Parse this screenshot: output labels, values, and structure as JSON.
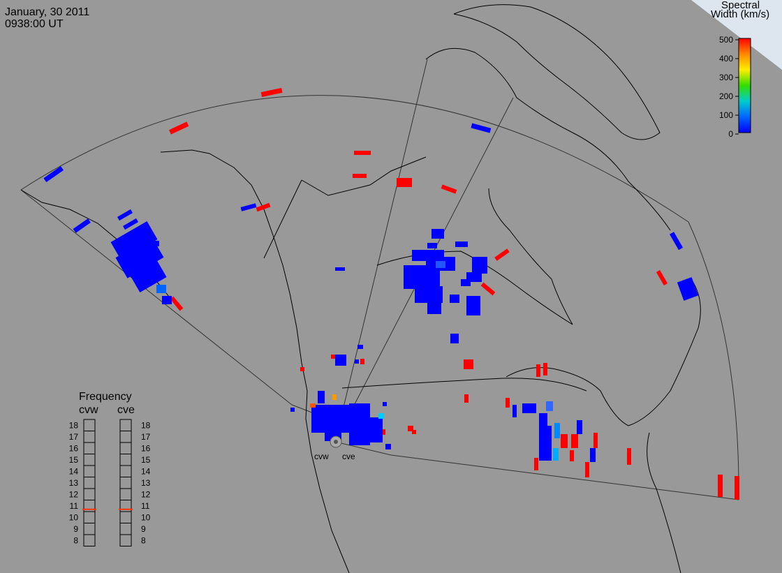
{
  "header": {
    "date": "January, 30 2011",
    "time": "0938:00 UT"
  },
  "colorbar": {
    "title_line1": "Spectral",
    "title_line2": "Width (km/s)",
    "ticks": [
      "500",
      "400",
      "300",
      "200",
      "100",
      "0"
    ],
    "gradient_colors": [
      "#ff0000",
      "#ff8800",
      "#ffee00",
      "#33dd00",
      "#00cccc",
      "#0066ff",
      "#0000ff"
    ]
  },
  "radars": [
    {
      "code": "cvw",
      "frequency_mhz": 10.7,
      "indicator_color": "#ff3300"
    },
    {
      "code": "cve",
      "frequency_mhz": 10.7,
      "indicator_color": "#ff3300"
    }
  ],
  "frequency_panel": {
    "title": "Frequency",
    "left_label": "cvw",
    "right_label": "cve",
    "scale": [
      "18",
      "17",
      "16",
      "15",
      "14",
      "13",
      "12",
      "11",
      "10",
      "9",
      "8"
    ]
  },
  "site_labels": {
    "west": "cvw",
    "east": "cve"
  },
  "icons": [
    "radar-site-marker",
    "colorbar-scale",
    "frequency-indicator"
  ]
}
